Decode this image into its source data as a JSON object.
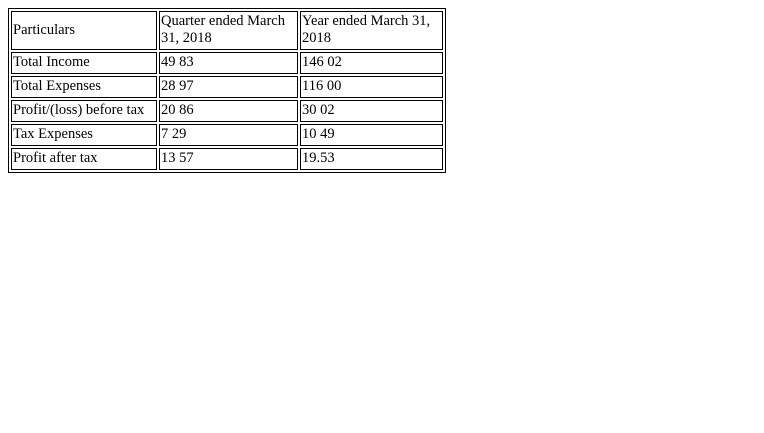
{
  "table": {
    "headers": [
      "Particulars",
      "Quarter ended March 31, 2018",
      "Year ended March 31, 2018"
    ],
    "rows": [
      [
        "Total Income",
        "49 83",
        "146 02"
      ],
      [
        "Total Expenses",
        "28 97",
        "116 00"
      ],
      [
        "Profit/(loss) before tax",
        "20 86",
        "30 02"
      ],
      [
        "Tax Expenses",
        "7 29",
        "10 49"
      ],
      [
        "Profit after tax",
        "13 57",
        "19.53"
      ]
    ]
  }
}
